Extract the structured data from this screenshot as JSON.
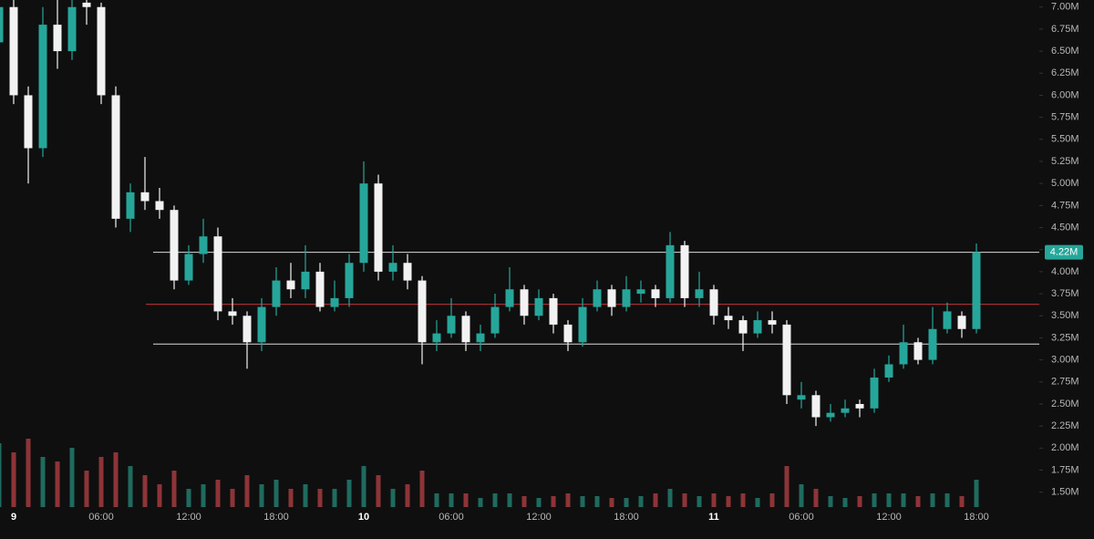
{
  "chart_data": {
    "type": "candlestick",
    "categories": [
      null,
      "9",
      null,
      null,
      null,
      null,
      null,
      "06:00",
      null,
      null,
      null,
      null,
      null,
      "12:00",
      null,
      null,
      null,
      null,
      null,
      "18:00",
      null,
      null,
      null,
      null,
      null,
      "10",
      null,
      null,
      null,
      null,
      null,
      "06:00",
      null,
      null,
      null,
      null,
      null,
      "12:00",
      null,
      null,
      null,
      null,
      null,
      "18:00",
      null,
      null,
      null,
      null,
      null,
      "11",
      null,
      null,
      null,
      null,
      null,
      "06:00",
      null,
      null,
      null,
      null,
      null,
      "12:00",
      null,
      null,
      null,
      null,
      null,
      "18:00"
    ],
    "open": [
      6.6,
      7.0,
      6.0,
      5.4,
      6.8,
      6.5,
      7.05,
      7.0,
      6.0,
      4.6,
      4.9,
      4.8,
      4.7,
      3.9,
      4.2,
      4.4,
      3.55,
      3.5,
      3.2,
      3.6,
      3.9,
      3.8,
      4.0,
      3.6,
      3.7,
      4.1,
      5.0,
      4.0,
      4.1,
      3.9,
      3.2,
      3.3,
      3.5,
      3.2,
      3.3,
      3.6,
      3.8,
      3.5,
      3.7,
      3.4,
      3.2,
      3.6,
      3.8,
      3.6,
      3.75,
      3.8,
      3.7,
      4.3,
      3.7,
      3.8,
      3.5,
      3.45,
      3.3,
      3.45,
      3.4,
      2.55,
      2.6,
      2.35,
      2.4,
      2.5,
      2.45,
      2.8,
      2.95,
      3.2,
      3.0,
      3.35,
      3.5,
      3.35
    ],
    "high": [
      7.08,
      7.08,
      6.1,
      7.0,
      7.08,
      7.08,
      7.08,
      7.05,
      6.1,
      5.0,
      5.3,
      4.95,
      4.75,
      4.3,
      4.6,
      4.5,
      3.7,
      3.55,
      3.7,
      4.05,
      4.1,
      4.3,
      4.1,
      3.9,
      4.2,
      5.25,
      5.1,
      4.3,
      4.2,
      3.95,
      3.45,
      3.7,
      3.55,
      3.4,
      3.75,
      4.05,
      3.85,
      3.8,
      3.75,
      3.45,
      3.7,
      3.9,
      3.85,
      3.95,
      3.9,
      3.85,
      4.45,
      4.35,
      4.0,
      3.85,
      3.6,
      3.5,
      3.55,
      3.55,
      3.45,
      2.75,
      2.65,
      2.5,
      2.55,
      2.55,
      2.9,
      3.05,
      3.4,
      3.25,
      3.6,
      3.65,
      3.55,
      4.32
    ],
    "low": [
      6.5,
      5.9,
      5.0,
      5.3,
      6.3,
      6.4,
      6.8,
      5.9,
      4.5,
      4.45,
      4.7,
      4.6,
      3.8,
      3.85,
      4.1,
      3.45,
      3.4,
      2.9,
      3.1,
      3.5,
      3.7,
      3.7,
      3.55,
      3.55,
      3.6,
      4.0,
      3.9,
      3.9,
      3.8,
      2.95,
      3.1,
      3.25,
      3.1,
      3.1,
      3.25,
      3.55,
      3.4,
      3.45,
      3.3,
      3.1,
      3.15,
      3.55,
      3.5,
      3.55,
      3.65,
      3.6,
      3.65,
      3.6,
      3.6,
      3.4,
      3.35,
      3.1,
      3.25,
      3.3,
      2.5,
      2.45,
      2.25,
      2.3,
      2.35,
      2.35,
      2.4,
      2.75,
      2.9,
      2.95,
      2.95,
      3.3,
      3.25,
      3.3
    ],
    "close": [
      7.0,
      6.0,
      5.4,
      6.8,
      6.5,
      7.0,
      7.0,
      6.0,
      4.6,
      4.9,
      4.8,
      4.7,
      3.9,
      4.2,
      4.4,
      3.55,
      3.5,
      3.2,
      3.6,
      3.9,
      3.8,
      4.0,
      3.6,
      3.7,
      4.1,
      5.0,
      4.0,
      4.1,
      3.9,
      3.2,
      3.3,
      3.5,
      3.2,
      3.3,
      3.6,
      3.8,
      3.5,
      3.7,
      3.4,
      3.2,
      3.6,
      3.8,
      3.6,
      3.8,
      3.8,
      3.7,
      4.3,
      3.7,
      3.8,
      3.5,
      3.45,
      3.3,
      3.45,
      3.4,
      2.6,
      2.6,
      2.35,
      2.4,
      2.45,
      2.45,
      2.8,
      2.95,
      3.2,
      3.0,
      3.35,
      3.55,
      3.35,
      4.22
    ],
    "volume": [
      70,
      60,
      75,
      55,
      50,
      65,
      40,
      55,
      60,
      45,
      35,
      25,
      40,
      20,
      25,
      30,
      20,
      35,
      25,
      30,
      20,
      25,
      20,
      20,
      30,
      45,
      35,
      20,
      25,
      40,
      15,
      15,
      15,
      10,
      15,
      15,
      12,
      10,
      12,
      15,
      12,
      12,
      10,
      10,
      12,
      15,
      20,
      15,
      12,
      15,
      12,
      15,
      10,
      15,
      45,
      25,
      20,
      12,
      10,
      12,
      15,
      15,
      15,
      12,
      15,
      15,
      12,
      30
    ],
    "vlim": [
      0,
      100
    ],
    "up_color": "#26a69a",
    "down_color": "#f2f2f2",
    "volume_up_color": "#1f6b5f",
    "volume_down_color": "#8e3438",
    "ylim": [
      1.29,
      7.08
    ],
    "yticks": [
      {
        "value": 1.5,
        "label": "1.50M"
      },
      {
        "value": 1.75,
        "label": "1.75M"
      },
      {
        "value": 2.0,
        "label": "2.00M"
      },
      {
        "value": 2.25,
        "label": "2.25M"
      },
      {
        "value": 2.5,
        "label": "2.50M"
      },
      {
        "value": 2.75,
        "label": "2.75M"
      },
      {
        "value": 3.0,
        "label": "3.00M"
      },
      {
        "value": 3.25,
        "label": "3.25M"
      },
      {
        "value": 3.5,
        "label": "3.50M"
      },
      {
        "value": 3.75,
        "label": "3.75M"
      },
      {
        "value": 4.0,
        "label": "4.00M"
      },
      {
        "value": 4.25,
        "label": "4.25M"
      },
      {
        "value": 4.5,
        "label": "4.50M"
      },
      {
        "value": 4.75,
        "label": "4.75M"
      },
      {
        "value": 5.0,
        "label": "5.00M"
      },
      {
        "value": 5.25,
        "label": "5.25M"
      },
      {
        "value": 5.5,
        "label": "5.50M"
      },
      {
        "value": 5.75,
        "label": "5.75M"
      },
      {
        "value": 6.0,
        "label": "6.00M"
      },
      {
        "value": 6.25,
        "label": "6.25M"
      },
      {
        "value": 6.5,
        "label": "6.50M"
      },
      {
        "value": 6.75,
        "label": "6.75M"
      },
      {
        "value": 7.0,
        "label": "7.00M"
      }
    ],
    "levels": [
      {
        "value": 4.22,
        "color": "#d9d9d9"
      },
      {
        "value": 3.63,
        "color": "#c2323a"
      },
      {
        "value": 3.18,
        "color": "#d9d9d9"
      }
    ],
    "price_label": {
      "value": 4.22,
      "label": "4.22M",
      "color": "#26a69a"
    }
  }
}
